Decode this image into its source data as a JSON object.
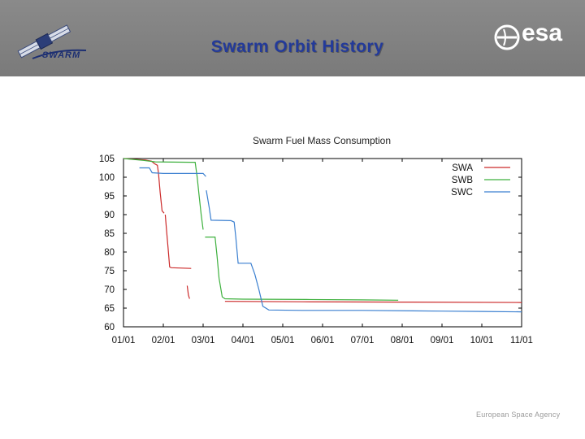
{
  "header": {
    "title": "Swarm Orbit History",
    "logo_left_text": "SWARM",
    "logo_right_text": "esa"
  },
  "footer": {
    "text": "European Space Agency"
  },
  "colors": {
    "SWA": "#cc2a2a",
    "SWB": "#3db03d",
    "SWC": "#3a7fd0"
  },
  "chart_data": {
    "type": "line",
    "title": "Swarm Fuel Mass Consumption",
    "xlabel": "",
    "ylabel": "",
    "xlim": [
      0,
      10
    ],
    "ylim": [
      60,
      105
    ],
    "x_ticks": [
      0,
      1,
      2,
      3,
      4,
      5,
      6,
      7,
      8,
      9,
      10
    ],
    "x_tick_labels": [
      "01/01",
      "02/01",
      "03/01",
      "04/01",
      "05/01",
      "06/01",
      "07/01",
      "08/01",
      "09/01",
      "10/01",
      "11/01"
    ],
    "y_ticks": [
      60,
      65,
      70,
      75,
      80,
      85,
      90,
      95,
      100,
      105
    ],
    "y_tick_labels": [
      "60",
      "65",
      "70",
      "75",
      "80",
      "85",
      "90",
      "95",
      "100",
      "105"
    ],
    "legend": "top-right",
    "series": [
      {
        "name": "SWA",
        "segments": [
          [
            [
              0,
              105
            ],
            [
              0.25,
              104.8
            ],
            [
              0.55,
              104.6
            ],
            [
              0.7,
              104.3
            ],
            [
              0.78,
              103.6
            ],
            [
              0.85,
              103.2
            ],
            [
              0.88,
              101
            ],
            [
              0.92,
              96
            ],
            [
              0.97,
              91
            ],
            [
              1.02,
              90.4
            ]
          ],
          [
            [
              1.05,
              90
            ],
            [
              1.08,
              86
            ],
            [
              1.12,
              81
            ],
            [
              1.16,
              76
            ],
            [
              1.2,
              75.8
            ],
            [
              1.7,
              75.6
            ]
          ],
          [
            [
              1.6,
              71
            ],
            [
              1.63,
              68.5
            ],
            [
              1.66,
              67.5
            ]
          ],
          [
            [
              2.55,
              66.8
            ],
            [
              4.5,
              66.7
            ],
            [
              7.0,
              66.6
            ],
            [
              10.0,
              66.5
            ]
          ]
        ]
      },
      {
        "name": "SWB",
        "segments": [
          [
            [
              0,
              105
            ],
            [
              0.5,
              104.5
            ],
            [
              0.8,
              104.1
            ],
            [
              1.7,
              104.0
            ],
            [
              1.8,
              104.0
            ],
            [
              1.85,
              100
            ],
            [
              1.9,
              95
            ],
            [
              1.95,
              90
            ],
            [
              2.0,
              86
            ]
          ],
          [
            [
              2.05,
              84
            ],
            [
              2.3,
              84
            ],
            [
              2.35,
              79
            ],
            [
              2.4,
              73
            ],
            [
              2.48,
              68
            ],
            [
              2.55,
              67.5
            ],
            [
              3.0,
              67.4
            ],
            [
              4.6,
              67.3
            ],
            [
              6.0,
              67.2
            ],
            [
              6.9,
              67.1
            ]
          ]
        ]
      },
      {
        "name": "SWC",
        "segments": [
          [
            [
              0.4,
              102.5
            ],
            [
              0.65,
              102.5
            ],
            [
              0.72,
              101.2
            ],
            [
              1.0,
              101
            ],
            [
              2.0,
              101
            ],
            [
              2.07,
              100.2
            ]
          ],
          [
            [
              2.08,
              96.5
            ],
            [
              2.15,
              92
            ],
            [
              2.2,
              88.5
            ],
            [
              2.7,
              88.4
            ],
            [
              2.78,
              88
            ],
            [
              2.82,
              84
            ],
            [
              2.88,
              77
            ],
            [
              3.2,
              77
            ],
            [
              3.3,
              74
            ],
            [
              3.4,
              70
            ],
            [
              3.5,
              65.5
            ],
            [
              3.65,
              64.5
            ],
            [
              4.5,
              64.4
            ],
            [
              6.0,
              64.4
            ],
            [
              8.0,
              64.2
            ],
            [
              9.0,
              64.1
            ],
            [
              10.0,
              64.0
            ]
          ]
        ]
      }
    ]
  }
}
